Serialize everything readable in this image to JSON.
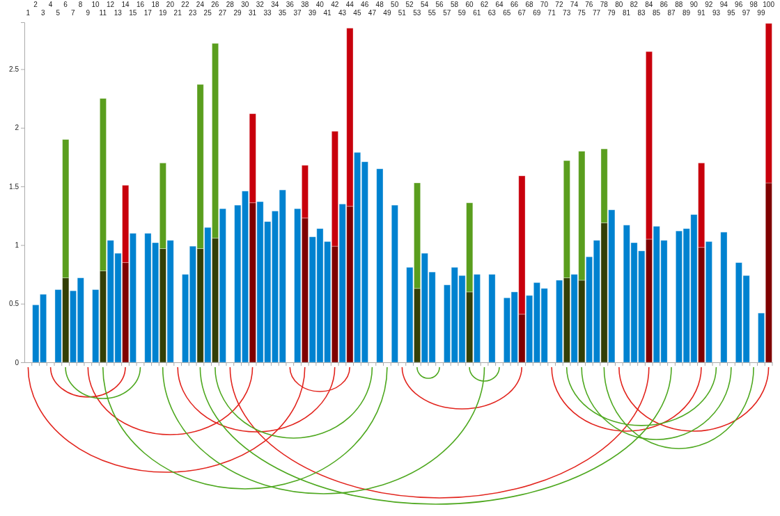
{
  "chart_data": {
    "type": "bar",
    "stacked": true,
    "categories": [
      "1",
      "2",
      "3",
      "4",
      "5",
      "6",
      "7",
      "8",
      "9",
      "10",
      "11",
      "12",
      "13",
      "14",
      "15",
      "16",
      "17",
      "18",
      "19",
      "20",
      "21",
      "22",
      "23",
      "24",
      "25",
      "26",
      "27",
      "28",
      "29",
      "30",
      "31",
      "32",
      "33",
      "34",
      "35",
      "36",
      "37",
      "38",
      "39",
      "40",
      "41",
      "42",
      "43",
      "44",
      "45",
      "46",
      "47",
      "48",
      "49",
      "50",
      "51",
      "52",
      "53",
      "54",
      "55",
      "56",
      "57",
      "58",
      "59",
      "60",
      "61",
      "62",
      "63",
      "64",
      "65",
      "66",
      "67",
      "68",
      "69",
      "70",
      "71",
      "72",
      "73",
      "74",
      "75",
      "76",
      "77",
      "78",
      "79",
      "80",
      "81",
      "82",
      "83",
      "84",
      "85",
      "86",
      "87",
      "88",
      "89",
      "90",
      "91",
      "92",
      "93",
      "94",
      "95",
      "96",
      "97",
      "98",
      "99",
      "100"
    ],
    "series": [
      {
        "values": [
          null,
          0.49,
          0.58,
          null,
          0.62,
          0.72,
          0.61,
          0.72,
          null,
          0.62,
          0.78,
          1.04,
          0.93,
          0.85,
          1.1,
          null,
          1.1,
          1.02,
          0.97,
          1.04,
          null,
          0.75,
          0.99,
          0.97,
          1.15,
          1.06,
          1.31,
          null,
          1.34,
          1.46,
          1.36,
          1.37,
          1.2,
          1.29,
          1.47,
          null,
          1.31,
          1.23,
          1.07,
          1.14,
          1.03,
          0.99,
          1.35,
          1.33,
          1.79,
          1.71,
          null,
          1.65,
          null,
          1.34,
          null,
          0.81,
          0.63,
          0.93,
          0.77,
          null,
          0.66,
          0.81,
          0.74,
          0.6,
          0.75,
          null,
          0.75,
          null,
          0.55,
          0.6,
          0.41,
          0.57,
          0.68,
          0.63,
          null,
          0.7,
          0.72,
          0.75,
          0.7,
          0.9,
          1.04,
          1.19,
          1.3,
          null,
          1.17,
          1.02,
          0.95,
          1.05,
          1.16,
          1.04,
          null,
          1.12,
          1.14,
          1.26,
          0.98,
          1.03,
          null,
          1.11,
          null,
          0.85,
          0.74,
          null,
          0.42,
          1.53
        ],
        "colors": [
          null,
          "#0082d0",
          "#0082d0",
          null,
          "#0082d0",
          "#333f06",
          "#0082d0",
          "#0082d0",
          null,
          "#0082d0",
          "#333f06",
          "#0082d0",
          "#0082d0",
          "#7f0000",
          "#0082d0",
          null,
          "#0082d0",
          "#0082d0",
          "#333f06",
          "#0082d0",
          null,
          "#0082d0",
          "#0082d0",
          "#333f06",
          "#0082d0",
          "#333f06",
          "#0082d0",
          null,
          "#0082d0",
          "#0082d0",
          "#7f0000",
          "#0082d0",
          "#0082d0",
          "#0082d0",
          "#0082d0",
          null,
          "#0082d0",
          "#7f0000",
          "#0082d0",
          "#0082d0",
          "#0082d0",
          "#7f0000",
          "#0082d0",
          "#7f0000",
          "#0082d0",
          "#0082d0",
          null,
          "#0082d0",
          null,
          "#0082d0",
          null,
          "#0082d0",
          "#333f06",
          "#0082d0",
          "#0082d0",
          null,
          "#0082d0",
          "#0082d0",
          "#0082d0",
          "#333f06",
          "#0082d0",
          null,
          "#0082d0",
          null,
          "#0082d0",
          "#0082d0",
          "#7f0000",
          "#0082d0",
          "#0082d0",
          "#0082d0",
          null,
          "#0082d0",
          "#333f06",
          "#0082d0",
          "#333f06",
          "#0082d0",
          "#0082d0",
          "#333f06",
          "#0082d0",
          null,
          "#0082d0",
          "#0082d0",
          "#0082d0",
          "#7f0000",
          "#0082d0",
          "#0082d0",
          null,
          "#0082d0",
          "#0082d0",
          "#0082d0",
          "#7f0000",
          "#0082d0",
          null,
          "#0082d0",
          null,
          "#0082d0",
          "#0082d0",
          null,
          "#0082d0",
          "#7f0000"
        ]
      },
      {
        "values": [
          null,
          null,
          null,
          null,
          null,
          1.18,
          null,
          null,
          null,
          null,
          1.47,
          null,
          null,
          0.66,
          null,
          null,
          null,
          null,
          0.73,
          null,
          null,
          null,
          null,
          1.4,
          null,
          1.66,
          null,
          null,
          null,
          null,
          0.76,
          null,
          null,
          null,
          null,
          null,
          null,
          0.45,
          null,
          null,
          null,
          0.98,
          null,
          1.52,
          null,
          null,
          null,
          null,
          null,
          null,
          null,
          null,
          0.9,
          null,
          null,
          null,
          null,
          null,
          null,
          0.76,
          null,
          null,
          null,
          null,
          null,
          null,
          1.18,
          null,
          null,
          null,
          null,
          null,
          1.0,
          null,
          1.1,
          null,
          null,
          0.63,
          null,
          null,
          null,
          null,
          null,
          1.6,
          null,
          null,
          null,
          null,
          null,
          null,
          0.72,
          null,
          null,
          null,
          null,
          null,
          null,
          null,
          null,
          1.36
        ],
        "colors": [
          null,
          null,
          null,
          null,
          null,
          "#5a9e1e",
          null,
          null,
          null,
          null,
          "#5a9e1e",
          null,
          null,
          "#c8000c",
          null,
          null,
          null,
          null,
          "#5a9e1e",
          null,
          null,
          null,
          null,
          "#5a9e1e",
          null,
          "#5a9e1e",
          null,
          null,
          null,
          null,
          "#c8000c",
          null,
          null,
          null,
          null,
          null,
          null,
          "#c8000c",
          null,
          null,
          null,
          "#c8000c",
          null,
          "#c8000c",
          null,
          null,
          null,
          null,
          null,
          null,
          null,
          null,
          "#5a9e1e",
          null,
          null,
          null,
          null,
          null,
          null,
          "#5a9e1e",
          null,
          null,
          null,
          null,
          null,
          null,
          "#c8000c",
          null,
          null,
          null,
          null,
          null,
          "#5a9e1e",
          null,
          "#5a9e1e",
          null,
          null,
          "#5a9e1e",
          null,
          null,
          null,
          null,
          null,
          "#c8000c",
          null,
          null,
          null,
          null,
          null,
          null,
          "#c8000c",
          null,
          null,
          null,
          null,
          null,
          null,
          null,
          null,
          "#c8000c"
        ]
      }
    ],
    "ylim": [
      0,
      2.9
    ],
    "yticks": [
      0,
      0.5,
      1,
      1.5,
      2,
      2.5
    ]
  }
}
